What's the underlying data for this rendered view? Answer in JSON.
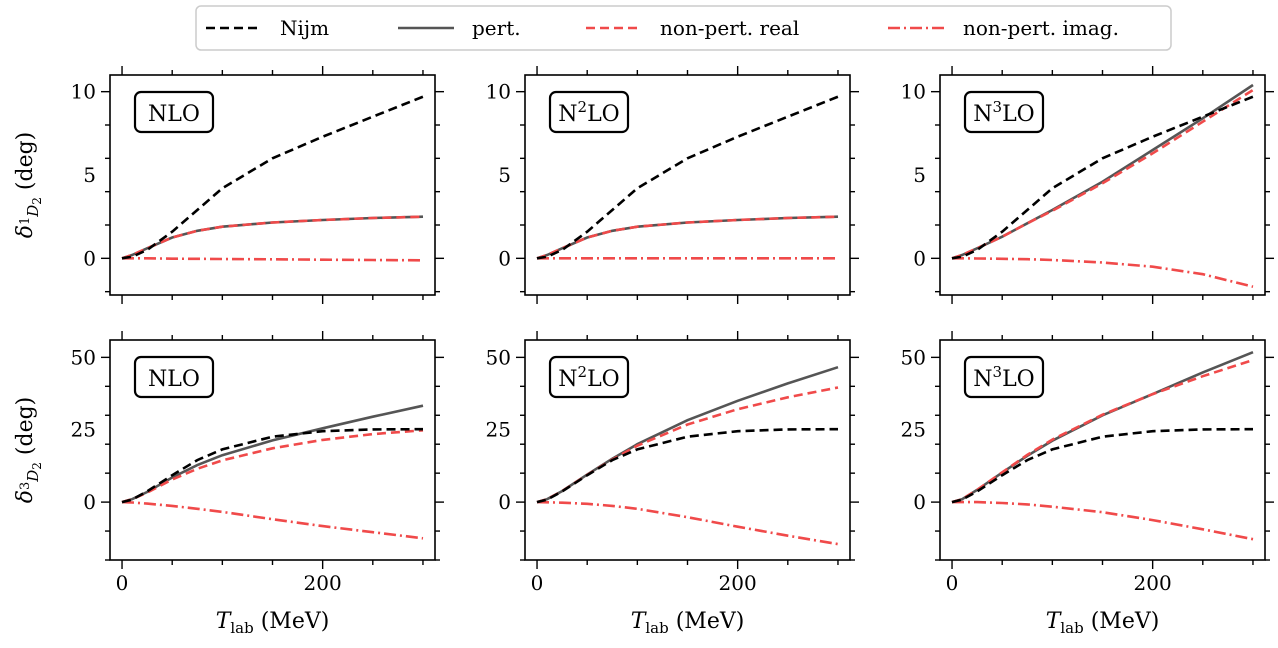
{
  "legend": [
    {
      "name": "Nijm",
      "color": "#000000",
      "dash": "dashed"
    },
    {
      "name": "pert.",
      "color": "#555555",
      "dash": "solid"
    },
    {
      "name": "non-pert. real",
      "color": "#f04a4a",
      "dash": "dashed"
    },
    {
      "name": "non-pert. imag.",
      "color": "#f04a4a",
      "dash": "dashdot"
    }
  ],
  "axes_common": {
    "xlabel": "T_lab (MeV)",
    "xlim": [
      -12,
      312
    ],
    "xticks_major": [
      0,
      200
    ]
  },
  "chart_data": [
    {
      "type": "line",
      "row": 0,
      "col": 0,
      "order_label": "NLO",
      "ylabel": "δ 1D2 (deg)",
      "ylim": [
        -2.2,
        11
      ],
      "yticks_major": [
        0,
        5,
        10
      ],
      "x": [
        0,
        10,
        25,
        50,
        75,
        100,
        150,
        200,
        250,
        300
      ],
      "series": [
        {
          "name": "Nijm",
          "values": [
            0,
            0.1,
            0.5,
            1.6,
            2.9,
            4.2,
            6.0,
            7.3,
            8.5,
            9.7
          ]
        },
        {
          "name": "pert.",
          "values": [
            0,
            0.2,
            0.6,
            1.25,
            1.65,
            1.9,
            2.15,
            2.3,
            2.42,
            2.5
          ]
        },
        {
          "name": "non-pert. real",
          "values": [
            0,
            0.2,
            0.6,
            1.25,
            1.65,
            1.9,
            2.15,
            2.3,
            2.42,
            2.5
          ]
        },
        {
          "name": "non-pert. imag.",
          "values": [
            0,
            0,
            0,
            -0.02,
            -0.03,
            -0.04,
            -0.06,
            -0.08,
            -0.1,
            -0.12
          ]
        }
      ]
    },
    {
      "type": "line",
      "row": 0,
      "col": 1,
      "order_label": "N2LO",
      "ylabel": "",
      "ylim": [
        -2.2,
        11
      ],
      "yticks_major": [
        0,
        5,
        10
      ],
      "x": [
        0,
        10,
        25,
        50,
        75,
        100,
        150,
        200,
        250,
        300
      ],
      "series": [
        {
          "name": "Nijm",
          "values": [
            0,
            0.1,
            0.5,
            1.6,
            2.9,
            4.2,
            6.0,
            7.3,
            8.5,
            9.7
          ]
        },
        {
          "name": "pert.",
          "values": [
            0,
            0.2,
            0.6,
            1.25,
            1.65,
            1.9,
            2.15,
            2.3,
            2.42,
            2.5
          ]
        },
        {
          "name": "non-pert. real",
          "values": [
            0,
            0.2,
            0.6,
            1.25,
            1.65,
            1.9,
            2.15,
            2.3,
            2.42,
            2.5
          ]
        },
        {
          "name": "non-pert. imag.",
          "values": [
            0,
            0,
            0,
            0,
            0,
            0,
            0,
            0,
            0,
            0
          ]
        }
      ]
    },
    {
      "type": "line",
      "row": 0,
      "col": 2,
      "order_label": "N3LO",
      "ylabel": "",
      "ylim": [
        -2.2,
        11
      ],
      "yticks_major": [
        0,
        5,
        10
      ],
      "x": [
        0,
        10,
        25,
        50,
        75,
        100,
        150,
        200,
        250,
        300
      ],
      "series": [
        {
          "name": "Nijm",
          "values": [
            0,
            0.1,
            0.5,
            1.6,
            2.9,
            4.2,
            6.0,
            7.3,
            8.5,
            9.7
          ]
        },
        {
          "name": "pert.",
          "values": [
            0,
            0.2,
            0.6,
            1.3,
            2.1,
            2.9,
            4.6,
            6.5,
            8.4,
            10.4
          ]
        },
        {
          "name": "non-pert. real",
          "values": [
            0,
            0.2,
            0.6,
            1.3,
            2.1,
            2.85,
            4.5,
            6.3,
            8.2,
            10.1
          ]
        },
        {
          "name": "non-pert. imag.",
          "values": [
            0,
            0,
            -0.01,
            -0.03,
            -0.05,
            -0.1,
            -0.25,
            -0.5,
            -0.95,
            -1.7
          ]
        }
      ]
    },
    {
      "type": "line",
      "row": 1,
      "col": 0,
      "order_label": "NLO",
      "ylabel": "δ 3D2 (deg)",
      "ylim": [
        -20,
        56
      ],
      "yticks_major": [
        0,
        25,
        50
      ],
      "x": [
        0,
        10,
        25,
        50,
        75,
        100,
        150,
        200,
        250,
        300
      ],
      "series": [
        {
          "name": "Nijm",
          "values": [
            0,
            0.85,
            3.7,
            9.3,
            14.5,
            18.2,
            22.6,
            24.5,
            25.1,
            25.2
          ]
        },
        {
          "name": "pert.",
          "values": [
            0,
            1.0,
            3.5,
            8.5,
            12.8,
            16.2,
            21.3,
            25.5,
            29.5,
            33.3
          ]
        },
        {
          "name": "non-pert. real",
          "values": [
            0,
            1.0,
            3.3,
            7.8,
            11.5,
            14.4,
            18.6,
            21.5,
            23.5,
            24.8
          ]
        },
        {
          "name": "non-pert. imag.",
          "values": [
            0,
            -0.15,
            -0.5,
            -1.3,
            -2.3,
            -3.4,
            -5.9,
            -8.3,
            -10.4,
            -12.5
          ]
        }
      ]
    },
    {
      "type": "line",
      "row": 1,
      "col": 1,
      "order_label": "N2LO",
      "ylabel": "",
      "ylim": [
        -20,
        56
      ],
      "yticks_major": [
        0,
        25,
        50
      ],
      "x": [
        0,
        10,
        25,
        50,
        75,
        100,
        150,
        200,
        250,
        300
      ],
      "series": [
        {
          "name": "Nijm",
          "values": [
            0,
            0.85,
            3.7,
            9.3,
            14.5,
            18.2,
            22.6,
            24.5,
            25.1,
            25.2
          ]
        },
        {
          "name": "pert.",
          "values": [
            0,
            1.0,
            3.8,
            9.5,
            15.0,
            20.0,
            28.3,
            35.0,
            41.0,
            46.6
          ]
        },
        {
          "name": "non-pert. real",
          "values": [
            0,
            1.0,
            3.8,
            9.4,
            14.7,
            19.5,
            26.8,
            32.1,
            36.2,
            39.6
          ]
        },
        {
          "name": "non-pert. imag.",
          "values": [
            0,
            -0.05,
            -0.2,
            -0.6,
            -1.3,
            -2.3,
            -5.2,
            -8.5,
            -11.6,
            -14.5
          ]
        }
      ]
    },
    {
      "type": "line",
      "row": 1,
      "col": 2,
      "order_label": "N3LO",
      "ylabel": "",
      "ylim": [
        -20,
        56
      ],
      "yticks_major": [
        0,
        25,
        50
      ],
      "x": [
        0,
        10,
        25,
        50,
        75,
        100,
        150,
        200,
        250,
        300
      ],
      "series": [
        {
          "name": "Nijm",
          "values": [
            0,
            0.85,
            3.7,
            9.3,
            14.5,
            18.2,
            22.6,
            24.5,
            25.1,
            25.2
          ]
        },
        {
          "name": "pert.",
          "values": [
            0,
            1.0,
            4.2,
            10.2,
            16.0,
            21.2,
            30.0,
            37.3,
            44.8,
            51.8
          ]
        },
        {
          "name": "non-pert. real",
          "values": [
            0,
            1.0,
            4.2,
            10.3,
            16.3,
            21.6,
            30.2,
            37.3,
            43.5,
            49.1
          ]
        },
        {
          "name": "non-pert. imag.",
          "values": [
            0,
            0,
            0,
            -0.3,
            -0.8,
            -1.6,
            -3.5,
            -6.2,
            -9.4,
            -12.8
          ]
        }
      ]
    }
  ]
}
